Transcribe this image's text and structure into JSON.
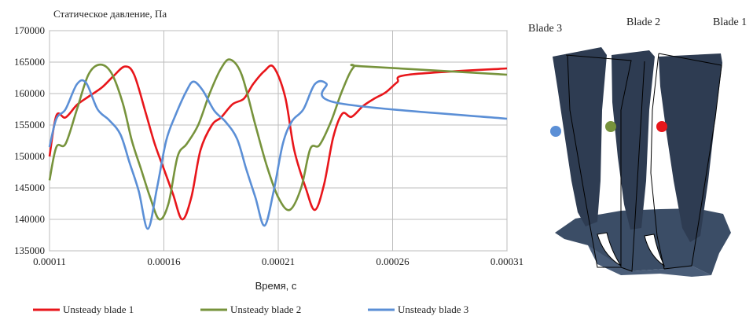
{
  "chart_data": {
    "type": "line",
    "ylabel": "Статическое давление, Па",
    "xlabel": "Время, с",
    "xlim": [
      0.00011,
      0.00031
    ],
    "ylim": [
      135000,
      170000
    ],
    "x_ticks": [
      "0.00011",
      "0.00016",
      "0.00021",
      "0.00026",
      "0.00031"
    ],
    "x_tick_values": [
      0.00011,
      0.00016,
      0.00021,
      0.00026,
      0.00031
    ],
    "y_ticks": [
      "135000",
      "140000",
      "145000",
      "150000",
      "155000",
      "160000",
      "165000",
      "170000"
    ],
    "y_tick_values": [
      135000,
      140000,
      145000,
      150000,
      155000,
      160000,
      165000,
      170000
    ],
    "grid": true,
    "legend_position": "bottom",
    "series": [
      {
        "name": "Unsteady blade 1",
        "color": "#e8161b",
        "points": [
          [
            0.00011,
            150000
          ],
          [
            0.000113,
            156500
          ],
          [
            0.000117,
            156200
          ],
          [
            0.000122,
            158200
          ],
          [
            0.000127,
            159500
          ],
          [
            0.000133,
            161000
          ],
          [
            0.000138,
            162800
          ],
          [
            0.000143,
            164300
          ],
          [
            0.000147,
            163000
          ],
          [
            0.000152,
            157000
          ],
          [
            0.000156,
            152000
          ],
          [
            0.00016,
            148000
          ],
          [
            0.000164,
            144000
          ],
          [
            0.000168,
            140000
          ],
          [
            0.000172,
            143500
          ],
          [
            0.000176,
            151000
          ],
          [
            0.000181,
            155000
          ],
          [
            0.000185,
            156200
          ],
          [
            0.00019,
            158300
          ],
          [
            0.000195,
            159200
          ],
          [
            0.000199,
            161500
          ],
          [
            0.000204,
            163600
          ],
          [
            0.000208,
            164200
          ],
          [
            0.000213,
            159500
          ],
          [
            0.000217,
            151000
          ],
          [
            0.000222,
            145000
          ],
          [
            0.000226,
            141500
          ],
          [
            0.00023,
            145500
          ],
          [
            0.000234,
            153000
          ],
          [
            0.000238,
            156800
          ],
          [
            0.000242,
            156300
          ],
          [
            0.000247,
            158000
          ],
          [
            0.000252,
            159200
          ],
          [
            0.000257,
            160200
          ],
          [
            0.000262,
            161800
          ],
          [
            0.000267,
            163000
          ],
          [
            0.00031,
            164000
          ]
        ]
      },
      {
        "name": "Unsteady blade 2",
        "color": "#77933c",
        "points": [
          [
            0.00011,
            146200
          ],
          [
            0.000113,
            151500
          ],
          [
            0.000117,
            152000
          ],
          [
            0.000122,
            157500
          ],
          [
            0.000127,
            163000
          ],
          [
            0.000132,
            164600
          ],
          [
            0.000137,
            163300
          ],
          [
            0.000142,
            158500
          ],
          [
            0.000146,
            152500
          ],
          [
            0.00015,
            148000
          ],
          [
            0.000154,
            143500
          ],
          [
            0.000158,
            140000
          ],
          [
            0.000162,
            142500
          ],
          [
            0.000166,
            150000
          ],
          [
            0.00017,
            152000
          ],
          [
            0.000175,
            155000
          ],
          [
            0.00018,
            160000
          ],
          [
            0.000185,
            164000
          ],
          [
            0.000189,
            165400
          ],
          [
            0.000194,
            163000
          ],
          [
            0.0002,
            155000
          ],
          [
            0.000205,
            148500
          ],
          [
            0.00021,
            143500
          ],
          [
            0.000215,
            141500
          ],
          [
            0.00022,
            145000
          ],
          [
            0.000224,
            151200
          ],
          [
            0.000228,
            151800
          ],
          [
            0.000233,
            155500
          ],
          [
            0.000238,
            160500
          ],
          [
            0.000243,
            164200
          ],
          [
            0.000248,
            164300
          ],
          [
            0.00031,
            163000
          ]
        ]
      },
      {
        "name": "Unsteady blade 3",
        "color": "#5b8fd6",
        "points": [
          [
            0.00011,
            151500
          ],
          [
            0.000113,
            156000
          ],
          [
            0.000117,
            157500
          ],
          [
            0.000122,
            161500
          ],
          [
            0.000126,
            161700
          ],
          [
            0.000131,
            157500
          ],
          [
            0.000136,
            155800
          ],
          [
            0.000141,
            153500
          ],
          [
            0.000145,
            149000
          ],
          [
            0.000149,
            144500
          ],
          [
            0.000153,
            138500
          ],
          [
            0.000157,
            145000
          ],
          [
            0.000161,
            152500
          ],
          [
            0.000165,
            156500
          ],
          [
            0.00017,
            160500
          ],
          [
            0.000173,
            161900
          ],
          [
            0.000177,
            160500
          ],
          [
            0.000182,
            157300
          ],
          [
            0.000187,
            155500
          ],
          [
            0.000192,
            152800
          ],
          [
            0.000196,
            148000
          ],
          [
            0.0002,
            143500
          ],
          [
            0.000204,
            139000
          ],
          [
            0.000208,
            144500
          ],
          [
            0.000212,
            152000
          ],
          [
            0.000216,
            155600
          ],
          [
            0.000221,
            157500
          ],
          [
            0.000226,
            161500
          ],
          [
            0.000231,
            161600
          ],
          [
            0.000236,
            158500
          ],
          [
            0.00031,
            156000
          ]
        ]
      }
    ]
  },
  "blade_image": {
    "labels": [
      "Blade 3",
      "Blade 2",
      "Blade 1"
    ],
    "blade_color": "#2e3c52",
    "outline_color": "#000000",
    "markers": [
      {
        "blade": "Blade 3",
        "color": "#5b8fd6"
      },
      {
        "blade": "Blade 2",
        "color": "#77933c"
      },
      {
        "blade": "Blade 1",
        "color": "#e8161b"
      }
    ]
  }
}
